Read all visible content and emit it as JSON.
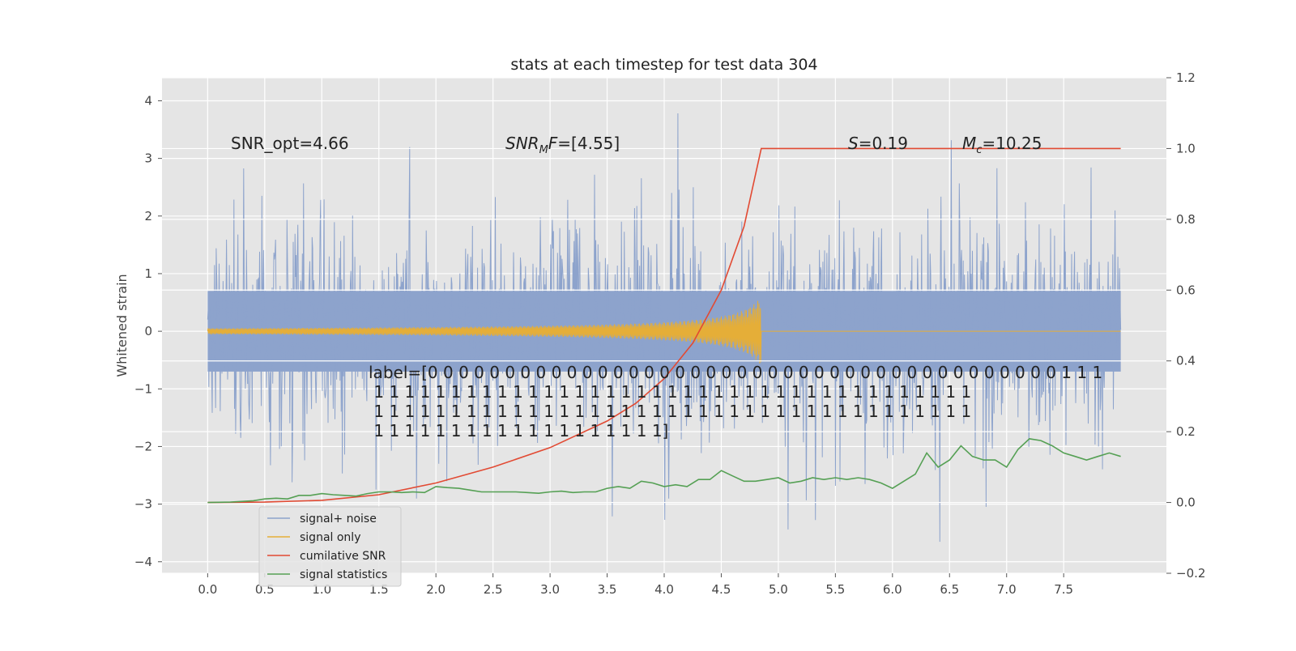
{
  "chart_data": {
    "type": "line",
    "title": "stats at each timestep for test data 304",
    "xlabel": "",
    "ylabel": "Whitened strain",
    "xlim": [
      -0.4,
      8.4
    ],
    "ylim": [
      -4.2,
      4.4
    ],
    "ylim_right": [
      -0.2,
      1.2
    ],
    "x_ticks": [
      "0.0",
      "0.5",
      "1.0",
      "1.5",
      "2.0",
      "2.5",
      "3.0",
      "3.5",
      "4.0",
      "4.5",
      "5.0",
      "5.5",
      "6.0",
      "6.5",
      "7.0",
      "7.5"
    ],
    "y_ticks": [
      "4",
      "3",
      "2",
      "1",
      "0",
      "−1",
      "−2",
      "−3",
      "−4"
    ],
    "y_ticks_right": [
      "1.2",
      "1.0",
      "0.8",
      "0.6",
      "0.4",
      "0.2",
      "0.0",
      "−0.2"
    ],
    "grid": true,
    "legend_position": "lower-left",
    "annotations": {
      "snr_opt": "SNR_opt=4.66",
      "snr_mf_prefix": "SNR",
      "snr_mf_sub": "M",
      "snr_mf_suffix": "F=[4.55]",
      "s_value_var": "S",
      "s_value": "=0.19",
      "mc_var": "M",
      "mc_sub": "c",
      "mc_value": "=10.25",
      "label_lines": [
        "label=[0 0 0 0 0 0 0 0 0 0 0 0 0 0 0 0 0 0 0 0 0 0 0 0 0 0 0 0 0 0 0 0 0 0 0 0 0 0 0 0 0 1 1 1",
        " 1 1 1 1 1 1 1 1 1 1 1 1 1 1 1 1 1 1 1 1 1 1 1 1 1 1 1 1 1 1 1 1 1 1 1 1 1 1 1",
        " 1 1 1 1 1 1 1 1 1 1 1 1 1 1 1 1 1 1 1 1 1 1 1 1 1 1 1 1 1 1 1 1 1 1 1 1 1 1 1",
        " 1 1 1 1 1 1 1 1 1 1 1 1 1 1 1 1 1 1 1]"
      ]
    },
    "series": [
      {
        "name": "signal+ noise",
        "color": "#8da3cc",
        "x_range": [
          0,
          8.0
        ],
        "envelope": {
          "typical": 0.9,
          "max": 3.8,
          "min": -3.75
        }
      },
      {
        "name": "signal only",
        "color": "#e5ae38",
        "chirp_end_x": 4.85,
        "chirp_peak_amplitude": 0.6
      },
      {
        "name": "cumilative SNR",
        "color": "#e24a33",
        "axis": "right",
        "points": [
          [
            0,
            0
          ],
          [
            0.5,
            0.001
          ],
          [
            1.0,
            0.006
          ],
          [
            1.5,
            0.022
          ],
          [
            2.0,
            0.055
          ],
          [
            2.5,
            0.1
          ],
          [
            3.0,
            0.155
          ],
          [
            3.5,
            0.23
          ],
          [
            3.75,
            0.28
          ],
          [
            4.0,
            0.35
          ],
          [
            4.25,
            0.45
          ],
          [
            4.5,
            0.6
          ],
          [
            4.7,
            0.78
          ],
          [
            4.85,
            1.0
          ],
          [
            8.0,
            1.0
          ]
        ]
      },
      {
        "name": "signal statistics",
        "color": "#55a054",
        "axis": "right",
        "points": [
          [
            0,
            0
          ],
          [
            0.2,
            0.001
          ],
          [
            0.4,
            0.005
          ],
          [
            0.5,
            0.01
          ],
          [
            0.6,
            0.012
          ],
          [
            0.7,
            0.01
          ],
          [
            0.8,
            0.02
          ],
          [
            0.9,
            0.02
          ],
          [
            1.0,
            0.025
          ],
          [
            1.1,
            0.022
          ],
          [
            1.2,
            0.02
          ],
          [
            1.3,
            0.018
          ],
          [
            1.4,
            0.025
          ],
          [
            1.5,
            0.03
          ],
          [
            1.6,
            0.03
          ],
          [
            1.7,
            0.028
          ],
          [
            1.8,
            0.03
          ],
          [
            1.9,
            0.028
          ],
          [
            2.0,
            0.045
          ],
          [
            2.1,
            0.042
          ],
          [
            2.2,
            0.04
          ],
          [
            2.3,
            0.035
          ],
          [
            2.4,
            0.03
          ],
          [
            2.5,
            0.03
          ],
          [
            2.6,
            0.03
          ],
          [
            2.7,
            0.03
          ],
          [
            2.8,
            0.028
          ],
          [
            2.9,
            0.026
          ],
          [
            3.0,
            0.03
          ],
          [
            3.1,
            0.032
          ],
          [
            3.2,
            0.028
          ],
          [
            3.3,
            0.03
          ],
          [
            3.4,
            0.03
          ],
          [
            3.5,
            0.04
          ],
          [
            3.6,
            0.045
          ],
          [
            3.7,
            0.04
          ],
          [
            3.8,
            0.06
          ],
          [
            3.9,
            0.055
          ],
          [
            4.0,
            0.045
          ],
          [
            4.1,
            0.05
          ],
          [
            4.2,
            0.045
          ],
          [
            4.3,
            0.065
          ],
          [
            4.4,
            0.065
          ],
          [
            4.5,
            0.09
          ],
          [
            4.6,
            0.075
          ],
          [
            4.7,
            0.06
          ],
          [
            4.8,
            0.06
          ],
          [
            4.9,
            0.065
          ],
          [
            5.0,
            0.07
          ],
          [
            5.1,
            0.055
          ],
          [
            5.2,
            0.06
          ],
          [
            5.3,
            0.07
          ],
          [
            5.4,
            0.065
          ],
          [
            5.5,
            0.07
          ],
          [
            5.6,
            0.065
          ],
          [
            5.7,
            0.07
          ],
          [
            5.8,
            0.065
          ],
          [
            5.9,
            0.055
          ],
          [
            6.0,
            0.04
          ],
          [
            6.1,
            0.06
          ],
          [
            6.2,
            0.08
          ],
          [
            6.3,
            0.14
          ],
          [
            6.4,
            0.1
          ],
          [
            6.5,
            0.12
          ],
          [
            6.6,
            0.16
          ],
          [
            6.7,
            0.13
          ],
          [
            6.8,
            0.12
          ],
          [
            6.9,
            0.12
          ],
          [
            7.0,
            0.1
          ],
          [
            7.1,
            0.15
          ],
          [
            7.2,
            0.18
          ],
          [
            7.3,
            0.175
          ],
          [
            7.4,
            0.16
          ],
          [
            7.5,
            0.14
          ],
          [
            7.6,
            0.13
          ],
          [
            7.7,
            0.12
          ],
          [
            7.8,
            0.13
          ],
          [
            7.9,
            0.14
          ],
          [
            8.0,
            0.13
          ]
        ]
      }
    ]
  }
}
